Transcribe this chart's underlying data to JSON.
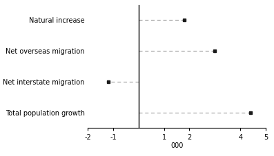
{
  "categories": [
    "Natural increase",
    "Net overseas migration",
    "Net interstate migration",
    "Total population growth"
  ],
  "values": [
    1.8,
    3.0,
    -1.2,
    4.4
  ],
  "xlim": [
    -2,
    5
  ],
  "xticks": [
    -2,
    -1,
    1,
    2,
    4,
    5
  ],
  "xlabel": "000",
  "baseline": 0,
  "dot_color": "#1a1a1a",
  "line_color": "#aaaaaa",
  "background_color": "#ffffff",
  "spine_color": "#000000",
  "label_fontsize": 7.0,
  "tick_fontsize": 7.0,
  "figsize": [
    3.97,
    2.27
  ],
  "dpi": 100
}
